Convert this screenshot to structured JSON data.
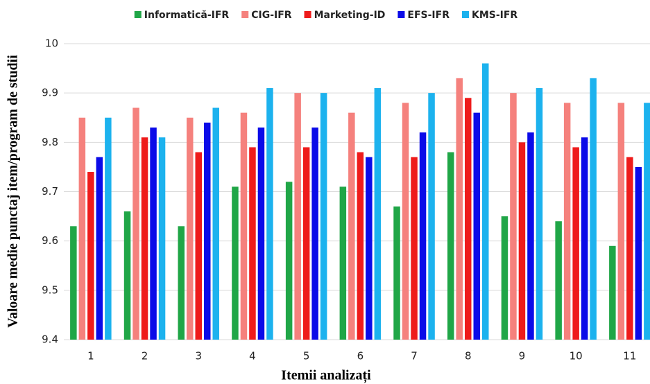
{
  "chart_data": {
    "type": "bar",
    "x_label": "Itemii analizați",
    "y_label": "Valoare medie punctaj item/program de studii",
    "categories": [
      "1",
      "2",
      "3",
      "4",
      "5",
      "6",
      "7",
      "8",
      "9",
      "10",
      "11"
    ],
    "series": [
      {
        "name": "Informatică-IFR",
        "color": "#20a647",
        "values": [
          9.63,
          9.66,
          9.63,
          9.71,
          9.72,
          9.71,
          9.67,
          9.78,
          9.65,
          9.64,
          9.59
        ]
      },
      {
        "name": "CIG-IFR",
        "color": "#f5817d",
        "values": [
          9.85,
          9.87,
          9.85,
          9.86,
          9.9,
          9.86,
          9.88,
          9.93,
          9.9,
          9.88,
          9.88
        ]
      },
      {
        "name": "Marketing-ID",
        "color": "#ee1b1b",
        "values": [
          9.74,
          9.81,
          9.78,
          9.79,
          9.79,
          9.78,
          9.77,
          9.89,
          9.8,
          9.79,
          9.77
        ]
      },
      {
        "name": "EFS-IFR",
        "color": "#0b0be8",
        "values": [
          9.77,
          9.83,
          9.84,
          9.83,
          9.83,
          9.77,
          9.82,
          9.86,
          9.82,
          9.81,
          9.75
        ]
      },
      {
        "name": "KMS-IFR",
        "color": "#1cb2ee",
        "values": [
          9.85,
          9.81,
          9.87,
          9.91,
          9.9,
          9.91,
          9.9,
          9.96,
          9.91,
          9.93,
          9.88
        ]
      }
    ],
    "ylim": [
      9.4,
      10
    ],
    "yticks": [
      9.4,
      9.5,
      9.6,
      9.7,
      9.8,
      9.9,
      10
    ],
    "grid": true,
    "legend": "top"
  }
}
